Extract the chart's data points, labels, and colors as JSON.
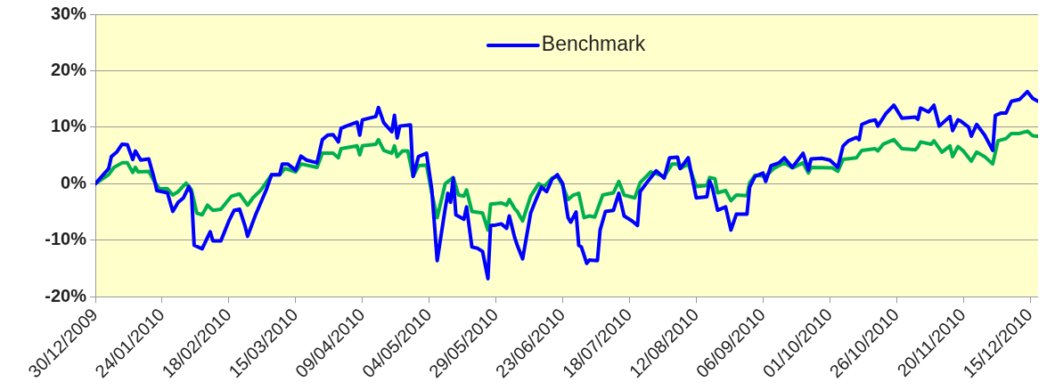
{
  "chart_data": {
    "type": "line",
    "xlim": [
      "2009-12-30",
      "2010-12-18"
    ],
    "xticks": [
      {
        "value": "2009-12-30",
        "label": "30/12/2009"
      },
      {
        "value": "2010-01-24",
        "label": "24/01/2010"
      },
      {
        "value": "2010-02-18",
        "label": "18/02/2010"
      },
      {
        "value": "2010-03-15",
        "label": "15/03/2010"
      },
      {
        "value": "2010-04-09",
        "label": "09/04/2010"
      },
      {
        "value": "2010-05-04",
        "label": "04/05/2010"
      },
      {
        "value": "2010-05-29",
        "label": "29/05/2010"
      },
      {
        "value": "2010-06-23",
        "label": "23/06/2010"
      },
      {
        "value": "2010-07-18",
        "label": "18/07/2010"
      },
      {
        "value": "2010-08-12",
        "label": "12/08/2010"
      },
      {
        "value": "2010-09-06",
        "label": "06/09/2010"
      },
      {
        "value": "2010-10-01",
        "label": "01/10/2010"
      },
      {
        "value": "2010-10-26",
        "label": "26/10/2010"
      },
      {
        "value": "2010-11-20",
        "label": "20/11/2010"
      },
      {
        "value": "2010-12-15",
        "label": "15/12/2010"
      }
    ],
    "ylim": [
      -20,
      30
    ],
    "yticks": [
      {
        "value": -20,
        "label": "-20%"
      },
      {
        "value": -10,
        "label": "-10%"
      },
      {
        "value": 0,
        "label": "0%"
      },
      {
        "value": 10,
        "label": "10%"
      },
      {
        "value": 20,
        "label": "20%"
      },
      {
        "value": 30,
        "label": "30%"
      }
    ],
    "grid": "y",
    "legend": "top",
    "marker": "none",
    "line_style": "solid",
    "series": [
      {
        "name": "Benchmark",
        "color": "#0000ff",
        "x": [
          "2009-12-30",
          "2010-01-04",
          "2010-01-05",
          "2010-01-07",
          "2010-01-09",
          "2010-01-11",
          "2010-01-13",
          "2010-01-14",
          "2010-01-16",
          "2010-01-19",
          "2010-01-21",
          "2010-01-22",
          "2010-01-26",
          "2010-01-28",
          "2010-01-30",
          "2010-02-01",
          "2010-02-03",
          "2010-02-04",
          "2010-02-05",
          "2010-02-08",
          "2010-02-11",
          "2010-02-12",
          "2010-02-15",
          "2010-02-18",
          "2010-02-20",
          "2010-02-22",
          "2010-02-24",
          "2010-02-25",
          "2010-02-28",
          "2010-03-02",
          "2010-03-04",
          "2010-03-06",
          "2010-03-09",
          "2010-03-10",
          "2010-03-12",
          "2010-03-15",
          "2010-03-17",
          "2010-03-19",
          "2010-03-23",
          "2010-03-25",
          "2010-03-27",
          "2010-03-29",
          "2010-03-31",
          "2010-04-01",
          "2010-04-03",
          "2010-04-07",
          "2010-04-08",
          "2010-04-09",
          "2010-04-14",
          "2010-04-15",
          "2010-04-17",
          "2010-04-20",
          "2010-04-21",
          "2010-04-22",
          "2010-04-23",
          "2010-04-27",
          "2010-04-28",
          "2010-04-30",
          "2010-05-03",
          "2010-05-05",
          "2010-05-07",
          "2010-05-10",
          "2010-05-11",
          "2010-05-12",
          "2010-05-13",
          "2010-05-14",
          "2010-05-17",
          "2010-05-18",
          "2010-05-20",
          "2010-05-22",
          "2010-05-24",
          "2010-05-26",
          "2010-05-27",
          "2010-05-29",
          "2010-05-31",
          "2010-06-02",
          "2010-06-03",
          "2010-06-05",
          "2010-06-06",
          "2010-06-08",
          "2010-06-11",
          "2010-06-13",
          "2010-06-15",
          "2010-06-17",
          "2010-06-19",
          "2010-06-21",
          "2010-06-23",
          "2010-06-25",
          "2010-06-26",
          "2010-06-28",
          "2010-06-29",
          "2010-06-30",
          "2010-07-02",
          "2010-07-03",
          "2010-07-06",
          "2010-07-07",
          "2010-07-09",
          "2010-07-12",
          "2010-07-14",
          "2010-07-16",
          "2010-07-19",
          "2010-07-21",
          "2010-07-22",
          "2010-07-25",
          "2010-07-28",
          "2010-07-31",
          "2010-08-02",
          "2010-08-05",
          "2010-08-06",
          "2010-08-09",
          "2010-08-12",
          "2010-08-16",
          "2010-08-17",
          "2010-08-18",
          "2010-08-20",
          "2010-08-23",
          "2010-08-25",
          "2010-08-27",
          "2010-08-31",
          "2010-09-01",
          "2010-09-03",
          "2010-09-06",
          "2010-09-07",
          "2010-09-09",
          "2010-09-12",
          "2010-09-14",
          "2010-09-17",
          "2010-09-21",
          "2010-09-23",
          "2010-09-24",
          "2010-09-28",
          "2010-10-01",
          "2010-10-04",
          "2010-10-06",
          "2010-10-08",
          "2010-10-11",
          "2010-10-12",
          "2010-10-13",
          "2010-10-16",
          "2010-10-18",
          "2010-10-19",
          "2010-10-22",
          "2010-10-25",
          "2010-10-28",
          "2010-11-02",
          "2010-11-03",
          "2010-11-04",
          "2010-11-07",
          "2010-11-09",
          "2010-11-11",
          "2010-11-15",
          "2010-11-16",
          "2010-11-18",
          "2010-11-19",
          "2010-11-22",
          "2010-11-23",
          "2010-11-25",
          "2010-11-28",
          "2010-12-01",
          "2010-12-02",
          "2010-12-04",
          "2010-12-06",
          "2010-12-08",
          "2010-12-11",
          "2010-12-14",
          "2010-12-16",
          "2010-12-18"
        ],
        "values": [
          0,
          2.7,
          4.8,
          5.6,
          7.0,
          6.9,
          4.3,
          5.8,
          4.2,
          4.4,
          1.0,
          -1.2,
          -1.6,
          -4.9,
          -3.3,
          -2.5,
          -0.5,
          -1.7,
          -10.9,
          -11.5,
          -8.5,
          -10.1,
          -10.1,
          -6.6,
          -4.7,
          -4.5,
          -7.4,
          -9.3,
          -5.5,
          -3.3,
          -1.1,
          1.6,
          1.6,
          3.5,
          3.5,
          2.4,
          4.9,
          4.2,
          3.7,
          7.8,
          8.6,
          8.7,
          7.4,
          9.8,
          10.2,
          10.9,
          8.6,
          11.3,
          11.9,
          13.5,
          10.8,
          9.2,
          12.1,
          8.1,
          10.2,
          10.4,
          1.3,
          4.8,
          5.4,
          -1.1,
          -13.6,
          -4.4,
          -1.7,
          -3.3,
          1.0,
          -5.5,
          -6.3,
          -4.1,
          -11.2,
          -11.4,
          -12.0,
          -16.8,
          -7.4,
          -7.3,
          -7.1,
          -7.9,
          -5.7,
          -9.5,
          -10.9,
          -13.3,
          -5.2,
          -2.8,
          -0.6,
          -1.4,
          0.8,
          1.6,
          0,
          -6.0,
          -6.8,
          -5.0,
          -10.9,
          -11.2,
          -14.1,
          -13.5,
          -13.6,
          -8.2,
          -4.9,
          -4.7,
          -1.7,
          -5.7,
          -6.6,
          -7.4,
          -1.4,
          0.5,
          2.3,
          1.0,
          4.6,
          4.7,
          2.7,
          4.6,
          -2.5,
          -2.3,
          0.5,
          -0.6,
          -4.7,
          -4.1,
          -8.2,
          -5.4,
          -5.4,
          -0.6,
          1.3,
          1.9,
          0.4,
          3.2,
          3.7,
          4.6,
          2.9,
          5.4,
          2.4,
          4.4,
          4.5,
          4.2,
          2.9,
          6.7,
          7.6,
          8.2,
          7.8,
          10.5,
          11.1,
          11.3,
          10.2,
          12.4,
          13.9,
          11.6,
          11.8,
          11.4,
          13.4,
          12.7,
          13.9,
          10.2,
          11.9,
          9.4,
          11.3,
          11.1,
          10.0,
          8.4,
          10.5,
          8.6,
          5.9,
          12.1,
          12.5,
          12.5,
          14.6,
          14.9,
          16.3,
          15.1,
          14.6
        ]
      },
      {
        "color": "#00b050",
        "x": [
          "2009-12-30",
          "2010-01-04",
          "2010-01-06",
          "2010-01-09",
          "2010-01-11",
          "2010-01-13",
          "2010-01-14",
          "2010-01-15",
          "2010-01-19",
          "2010-01-21",
          "2010-01-23",
          "2010-01-26",
          "2010-01-28",
          "2010-01-30",
          "2010-02-02",
          "2010-02-04",
          "2010-02-06",
          "2010-02-08",
          "2010-02-10",
          "2010-02-12",
          "2010-02-15",
          "2010-02-19",
          "2010-02-22",
          "2010-02-25",
          "2010-02-27",
          "2010-03-02",
          "2010-03-06",
          "2010-03-09",
          "2010-03-11",
          "2010-03-15",
          "2010-03-17",
          "2010-03-23",
          "2010-03-25",
          "2010-03-29",
          "2010-03-31",
          "2010-04-01",
          "2010-04-07",
          "2010-04-08",
          "2010-04-09",
          "2010-04-14",
          "2010-04-15",
          "2010-04-17",
          "2010-04-20",
          "2010-04-21",
          "2010-04-22",
          "2010-04-24",
          "2010-04-26",
          "2010-04-28",
          "2010-04-30",
          "2010-05-03",
          "2010-05-05",
          "2010-05-07",
          "2010-05-10",
          "2010-05-13",
          "2010-05-15",
          "2010-05-17",
          "2010-05-18",
          "2010-05-20",
          "2010-05-24",
          "2010-05-26",
          "2010-05-27",
          "2010-05-31",
          "2010-06-02",
          "2010-06-03",
          "2010-06-05",
          "2010-06-06",
          "2010-06-08",
          "2010-06-11",
          "2010-06-14",
          "2010-06-16",
          "2010-06-19",
          "2010-06-21",
          "2010-06-23",
          "2010-06-25",
          "2010-06-27",
          "2010-06-29",
          "2010-07-01",
          "2010-07-03",
          "2010-07-05",
          "2010-07-08",
          "2010-07-12",
          "2010-07-14",
          "2010-07-16",
          "2010-07-20",
          "2010-07-22",
          "2010-07-26",
          "2010-07-31",
          "2010-08-03",
          "2010-08-05",
          "2010-08-06",
          "2010-08-09",
          "2010-08-12",
          "2010-08-16",
          "2010-08-17",
          "2010-08-19",
          "2010-08-20",
          "2010-08-23",
          "2010-08-25",
          "2010-08-27",
          "2010-08-31",
          "2010-09-01",
          "2010-09-03",
          "2010-09-07",
          "2010-09-10",
          "2010-09-14",
          "2010-09-17",
          "2010-09-21",
          "2010-09-23",
          "2010-09-24",
          "2010-10-02",
          "2010-10-04",
          "2010-10-06",
          "2010-10-11",
          "2010-10-13",
          "2010-10-18",
          "2010-10-19",
          "2010-10-21",
          "2010-10-25",
          "2010-10-28",
          "2010-11-02",
          "2010-11-03",
          "2010-11-04",
          "2010-11-08",
          "2010-11-09",
          "2010-11-12",
          "2010-11-15",
          "2010-11-16",
          "2010-11-18",
          "2010-11-20",
          "2010-11-23",
          "2010-11-25",
          "2010-11-28",
          "2010-12-01",
          "2010-12-03",
          "2010-12-06",
          "2010-12-08",
          "2010-12-11",
          "2010-12-14",
          "2010-12-16",
          "2010-12-18"
        ],
        "values": [
          0,
          1.6,
          2.9,
          3.7,
          3.7,
          2.0,
          2.9,
          2.1,
          2.2,
          0.5,
          -0.9,
          -0.9,
          -2.0,
          -1.4,
          0.1,
          -1.1,
          -5.2,
          -5.5,
          -3.8,
          -4.7,
          -4.5,
          -2.2,
          -1.8,
          -3.8,
          -2.5,
          -1.1,
          1.6,
          1.6,
          2.7,
          2.1,
          3.5,
          2.9,
          5.4,
          5.4,
          4.6,
          6.2,
          6.7,
          5.1,
          6.7,
          7.0,
          7.8,
          5.9,
          5.4,
          6.7,
          4.8,
          5.8,
          5.8,
          1.3,
          3.2,
          3.3,
          -1.7,
          -6.0,
          0,
          1.1,
          -2.0,
          -2.2,
          -1.1,
          -4.9,
          -5.2,
          -8.2,
          -3.6,
          -3.4,
          -3.8,
          -2.8,
          -4.4,
          -4.9,
          -6.6,
          -2.2,
          0,
          -0.5,
          1.0,
          1.3,
          -0.3,
          -2.8,
          -2.0,
          -1.7,
          -6.0,
          -5.7,
          -5.9,
          -2.0,
          -1.6,
          0.4,
          -2.0,
          -2.5,
          0.2,
          2.1,
          1.3,
          3.5,
          3.5,
          2.7,
          3.5,
          -0.5,
          -0.3,
          1.1,
          0.9,
          -1.6,
          -1.2,
          -3.0,
          -2.0,
          -2.1,
          0.2,
          1.5,
          1.3,
          2.7,
          3.7,
          2.8,
          3.7,
          1.9,
          2.9,
          2.8,
          2.2,
          4.3,
          4.6,
          5.9,
          6.2,
          5.8,
          7.0,
          7.8,
          6.2,
          6.0,
          6.5,
          7.4,
          7.0,
          7.6,
          5.6,
          6.7,
          4.8,
          6.6,
          5.8,
          4.0,
          5.6,
          4.8,
          3.5,
          7.6,
          8.0,
          8.9,
          8.9,
          9.3,
          8.5,
          8.4
        ]
      }
    ]
  }
}
